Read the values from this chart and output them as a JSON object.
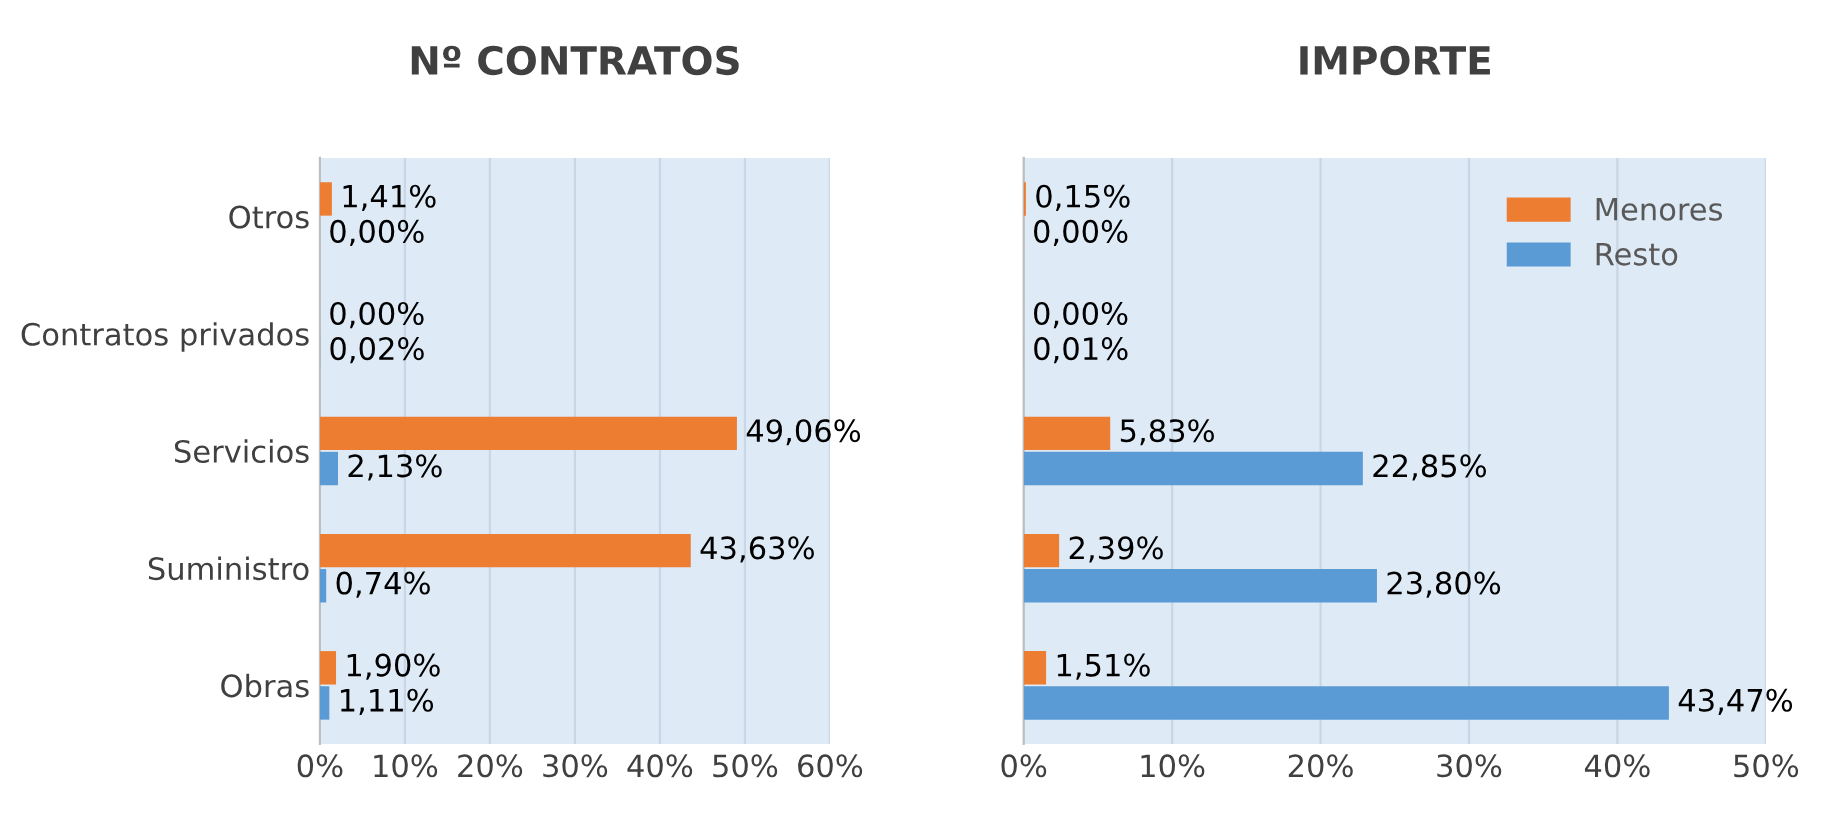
{
  "chart_data": [
    {
      "type": "bar",
      "orientation": "horizontal",
      "title": "Nº CONTRATOS",
      "categories": [
        "Otros",
        "Contratos privados",
        "Servicios",
        "Suministro",
        "Obras"
      ],
      "xlim": [
        0,
        60
      ],
      "xticks": [
        {
          "value": 0,
          "label": "0%"
        },
        {
          "value": 10,
          "label": "10%"
        },
        {
          "value": 20,
          "label": "20%"
        },
        {
          "value": 30,
          "label": "30%"
        },
        {
          "value": 40,
          "label": "40%"
        },
        {
          "value": 50,
          "label": "50%"
        },
        {
          "value": 60,
          "label": "60%"
        }
      ],
      "grid": "x",
      "legend": false,
      "series": [
        {
          "color": "#ed7d31",
          "values": [
            1.41,
            0,
            49.06,
            43.63,
            1.9
          ],
          "value_labels": [
            "1,41%",
            "0,00%",
            "49,06%",
            "43,63%",
            "1,90%"
          ]
        },
        {
          "color": "#5b9bd5",
          "values": [
            0,
            0.02,
            2.13,
            0.74,
            1.11
          ],
          "value_labels": [
            "0,00%",
            "0,02%",
            "2,13%",
            "0,74%",
            "1,11%"
          ]
        }
      ]
    },
    {
      "type": "bar",
      "orientation": "horizontal",
      "title": "IMPORTE",
      "categories": [
        null,
        null,
        null,
        null,
        null
      ],
      "tick_labels": "x",
      "xlim": [
        0,
        50
      ],
      "xticks": [
        {
          "value": 0,
          "label": "0%"
        },
        {
          "value": 10,
          "label": "10%"
        },
        {
          "value": 20,
          "label": "20%"
        },
        {
          "value": 30,
          "label": "30%"
        },
        {
          "value": 40,
          "label": "40%"
        },
        {
          "value": 50,
          "label": "50%"
        }
      ],
      "grid": "x",
      "legend": "top right",
      "series": [
        {
          "name": "Menores",
          "color": "#ed7d31",
          "values": [
            0.15,
            0,
            5.83,
            2.39,
            1.51
          ],
          "value_labels": [
            "0,15%",
            "0,00%",
            "5,83%",
            "2,39%",
            "1,51%"
          ]
        },
        {
          "name": "Resto",
          "color": "#5b9bd5",
          "values": [
            0,
            0.01,
            22.85,
            23.8,
            43.47
          ],
          "value_labels": [
            "0,00%",
            "0,01%",
            "22,85%",
            "23,80%",
            "43,47%"
          ]
        }
      ]
    }
  ]
}
